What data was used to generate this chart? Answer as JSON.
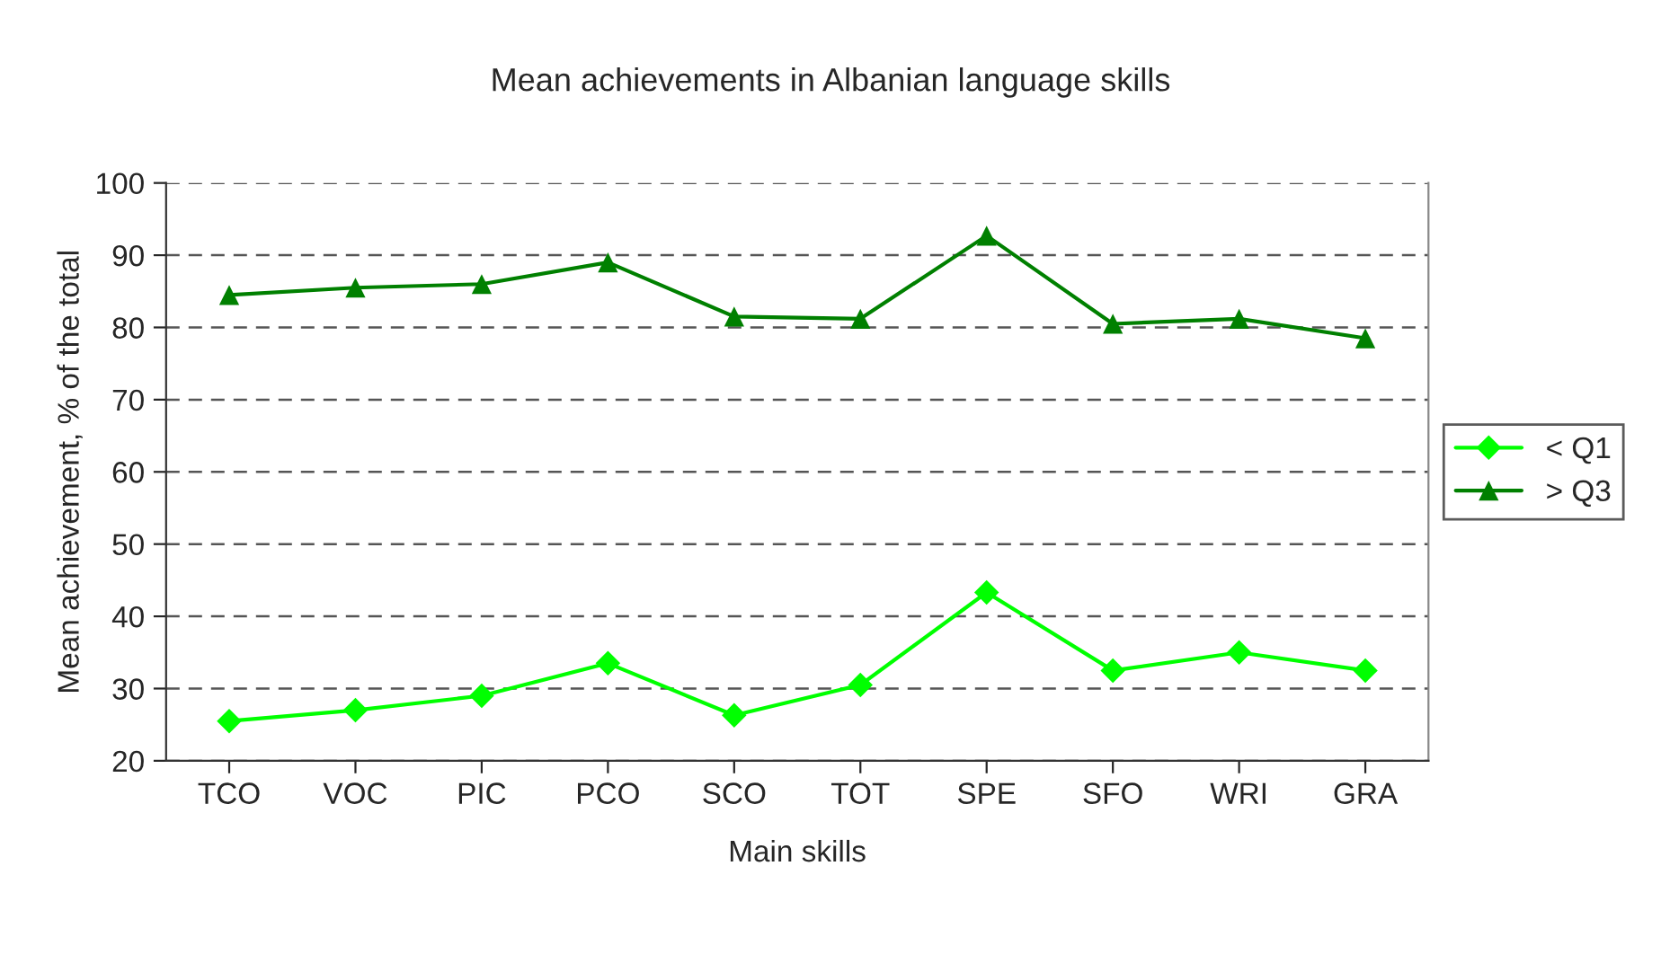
{
  "chart_data": {
    "type": "line",
    "title": "Mean achievements in Albanian language skills",
    "xlabel": "Main skills",
    "ylabel": "Mean achievement, % of the total",
    "categories": [
      "TCO",
      "VOC",
      "PIC",
      "PCO",
      "SCO",
      "TOT",
      "SPE",
      "SFO",
      "WRI",
      "GRA"
    ],
    "series": [
      {
        "name": "< Q1",
        "color": "#00ff00",
        "marker": "diamond",
        "values": [
          25.5,
          27,
          29,
          33.5,
          26.3,
          30.5,
          43.3,
          32.5,
          35,
          32.5
        ]
      },
      {
        "name": "> Q3",
        "color": "#008000",
        "marker": "triangle",
        "values": [
          84.5,
          85.5,
          86,
          89,
          81.5,
          81.2,
          92.7,
          80.5,
          81.2,
          78.5
        ]
      }
    ],
    "ylim": [
      20,
      100
    ],
    "yticks": [
      20,
      30,
      40,
      50,
      60,
      70,
      80,
      90,
      100
    ],
    "grid": "y",
    "legend": "right"
  }
}
